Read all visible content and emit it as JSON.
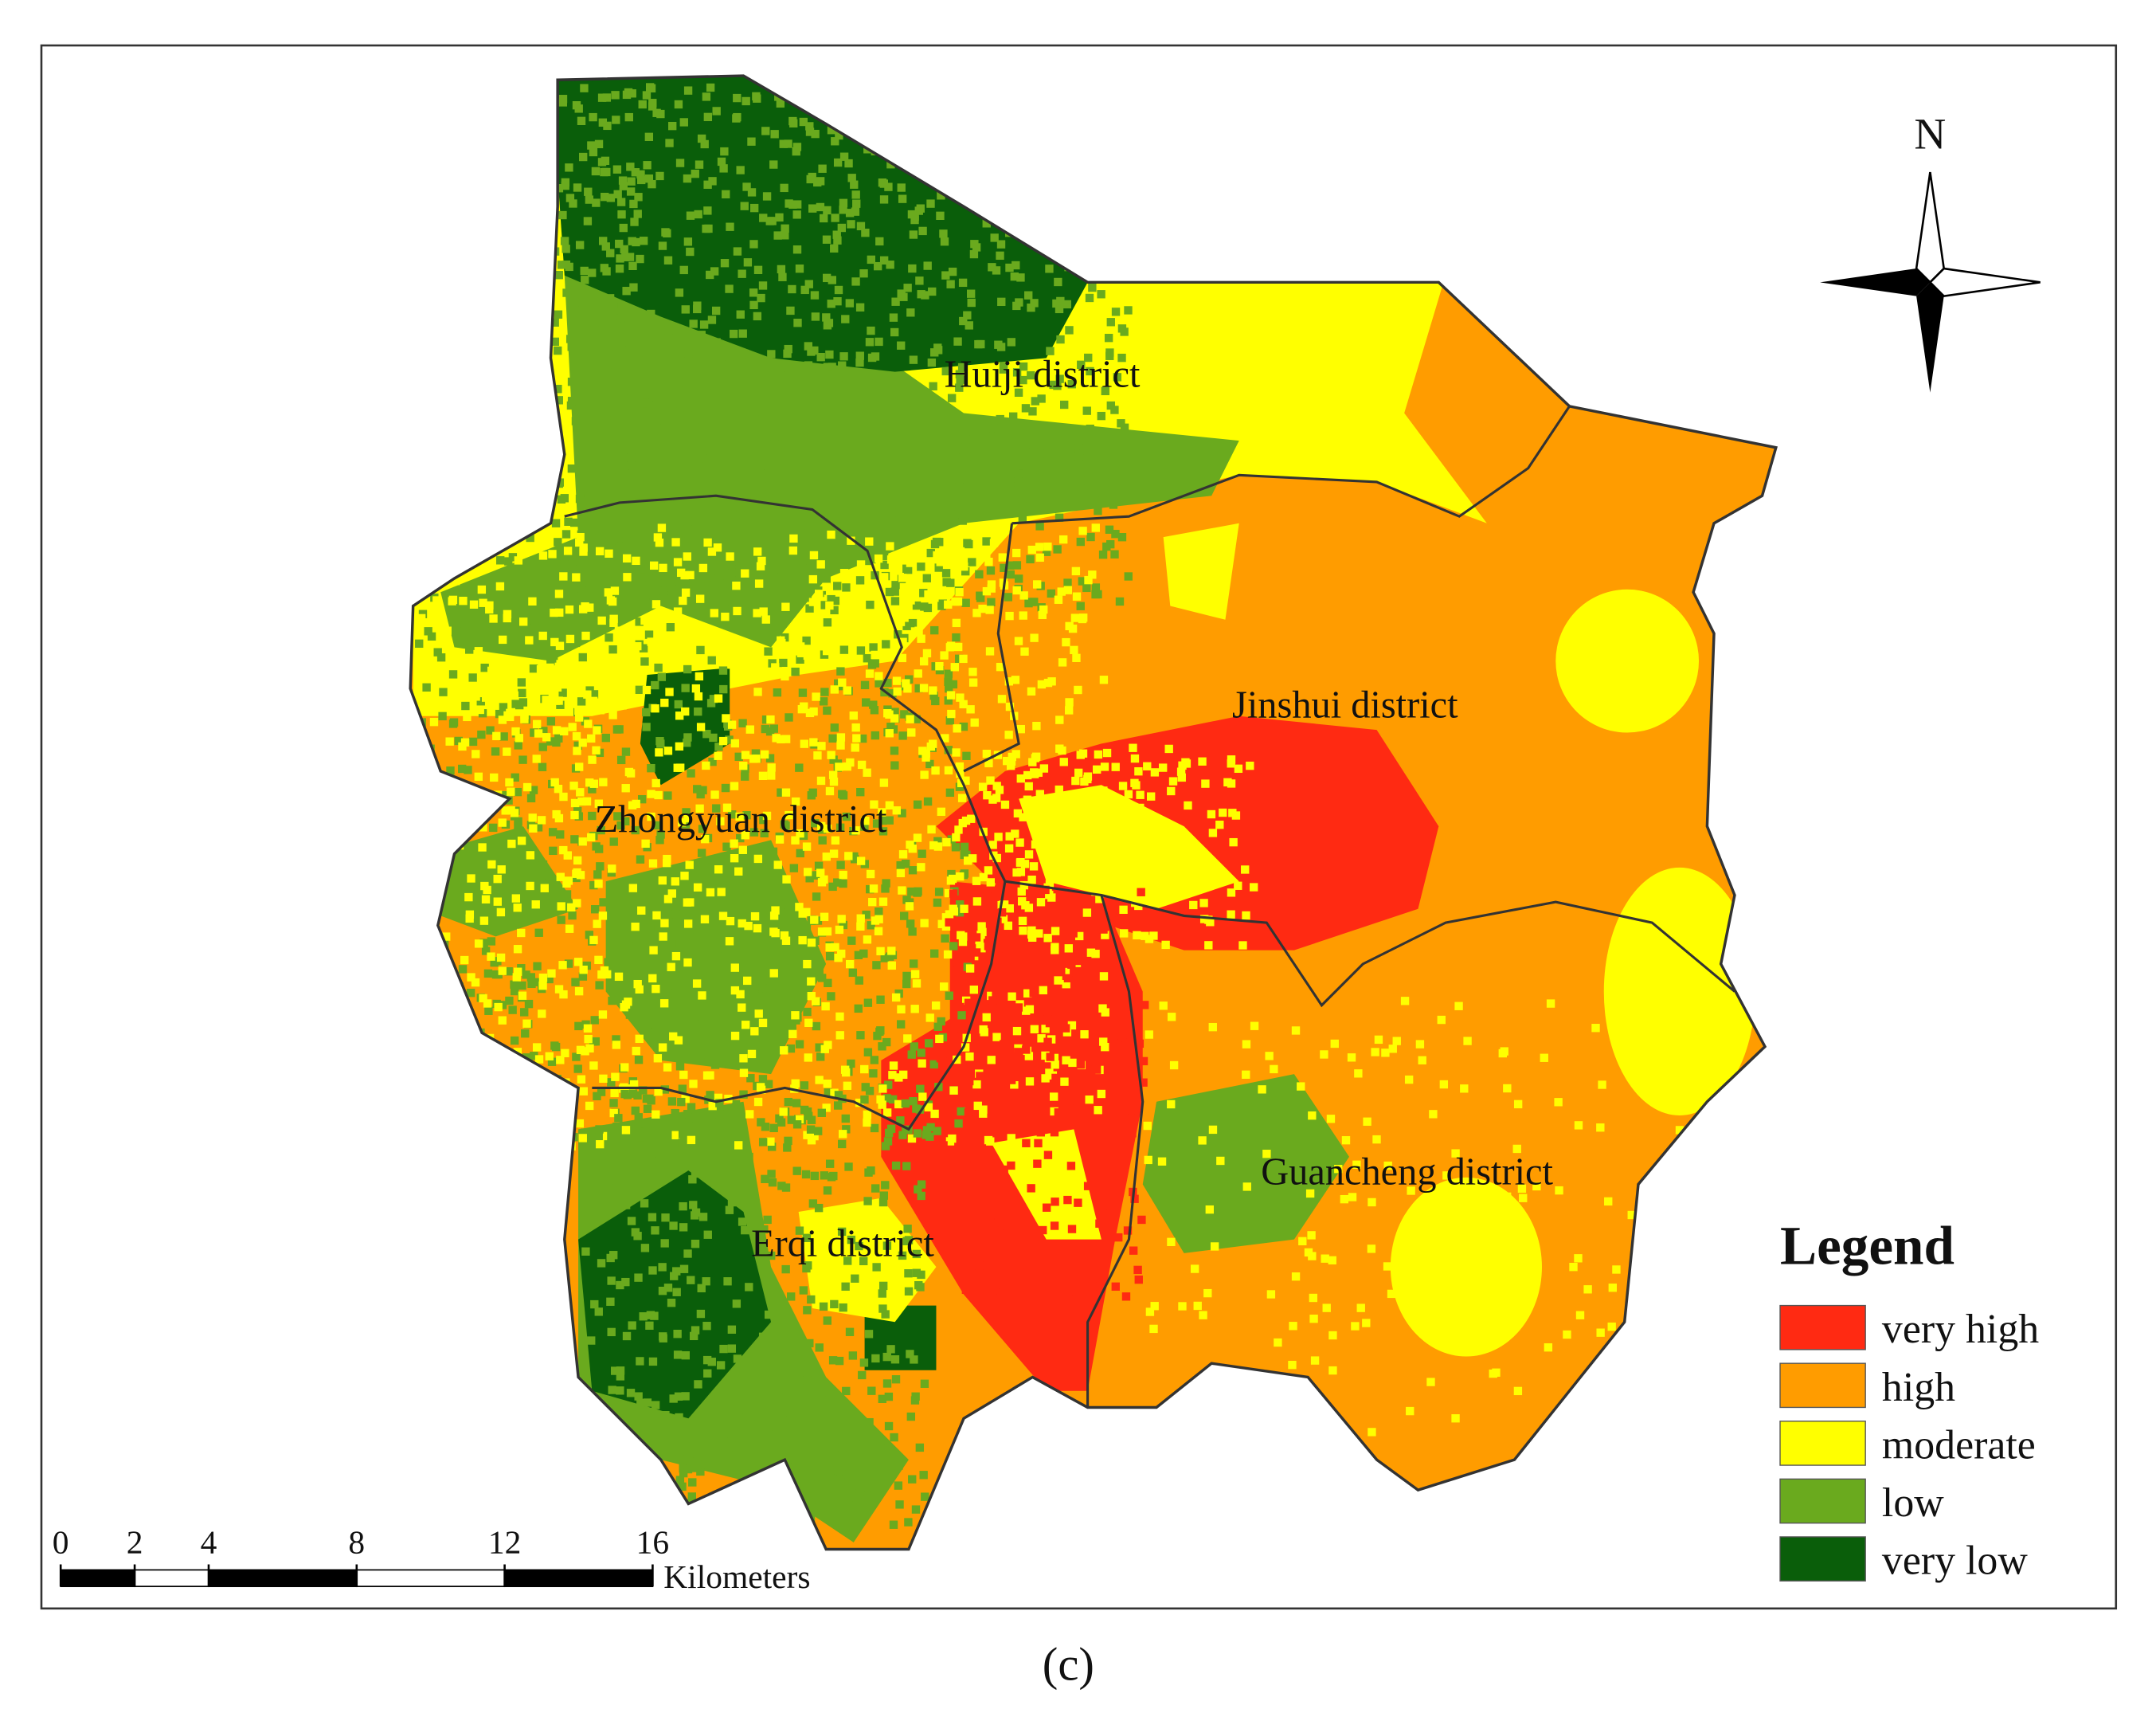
{
  "map": {
    "districts": [
      "Huiji district",
      "Jinshui district",
      "Zhongyuan district",
      "Erqi district",
      "Guancheng district"
    ],
    "north": "N",
    "legend": {
      "title": "Legend",
      "items": [
        {
          "label": "very high",
          "color": "#ff2a12"
        },
        {
          "label": "high",
          "color": "#ff9c00"
        },
        {
          "label": "moderate",
          "color": "#ffff00"
        },
        {
          "label": "low",
          "color": "#6aaa1e"
        },
        {
          "label": "very low",
          "color": "#0a5e0a"
        }
      ]
    },
    "scale_bar": {
      "ticks": [
        0,
        2,
        4,
        8,
        12,
        16
      ],
      "unit": "Kilometers"
    }
  },
  "caption": "(c)"
}
